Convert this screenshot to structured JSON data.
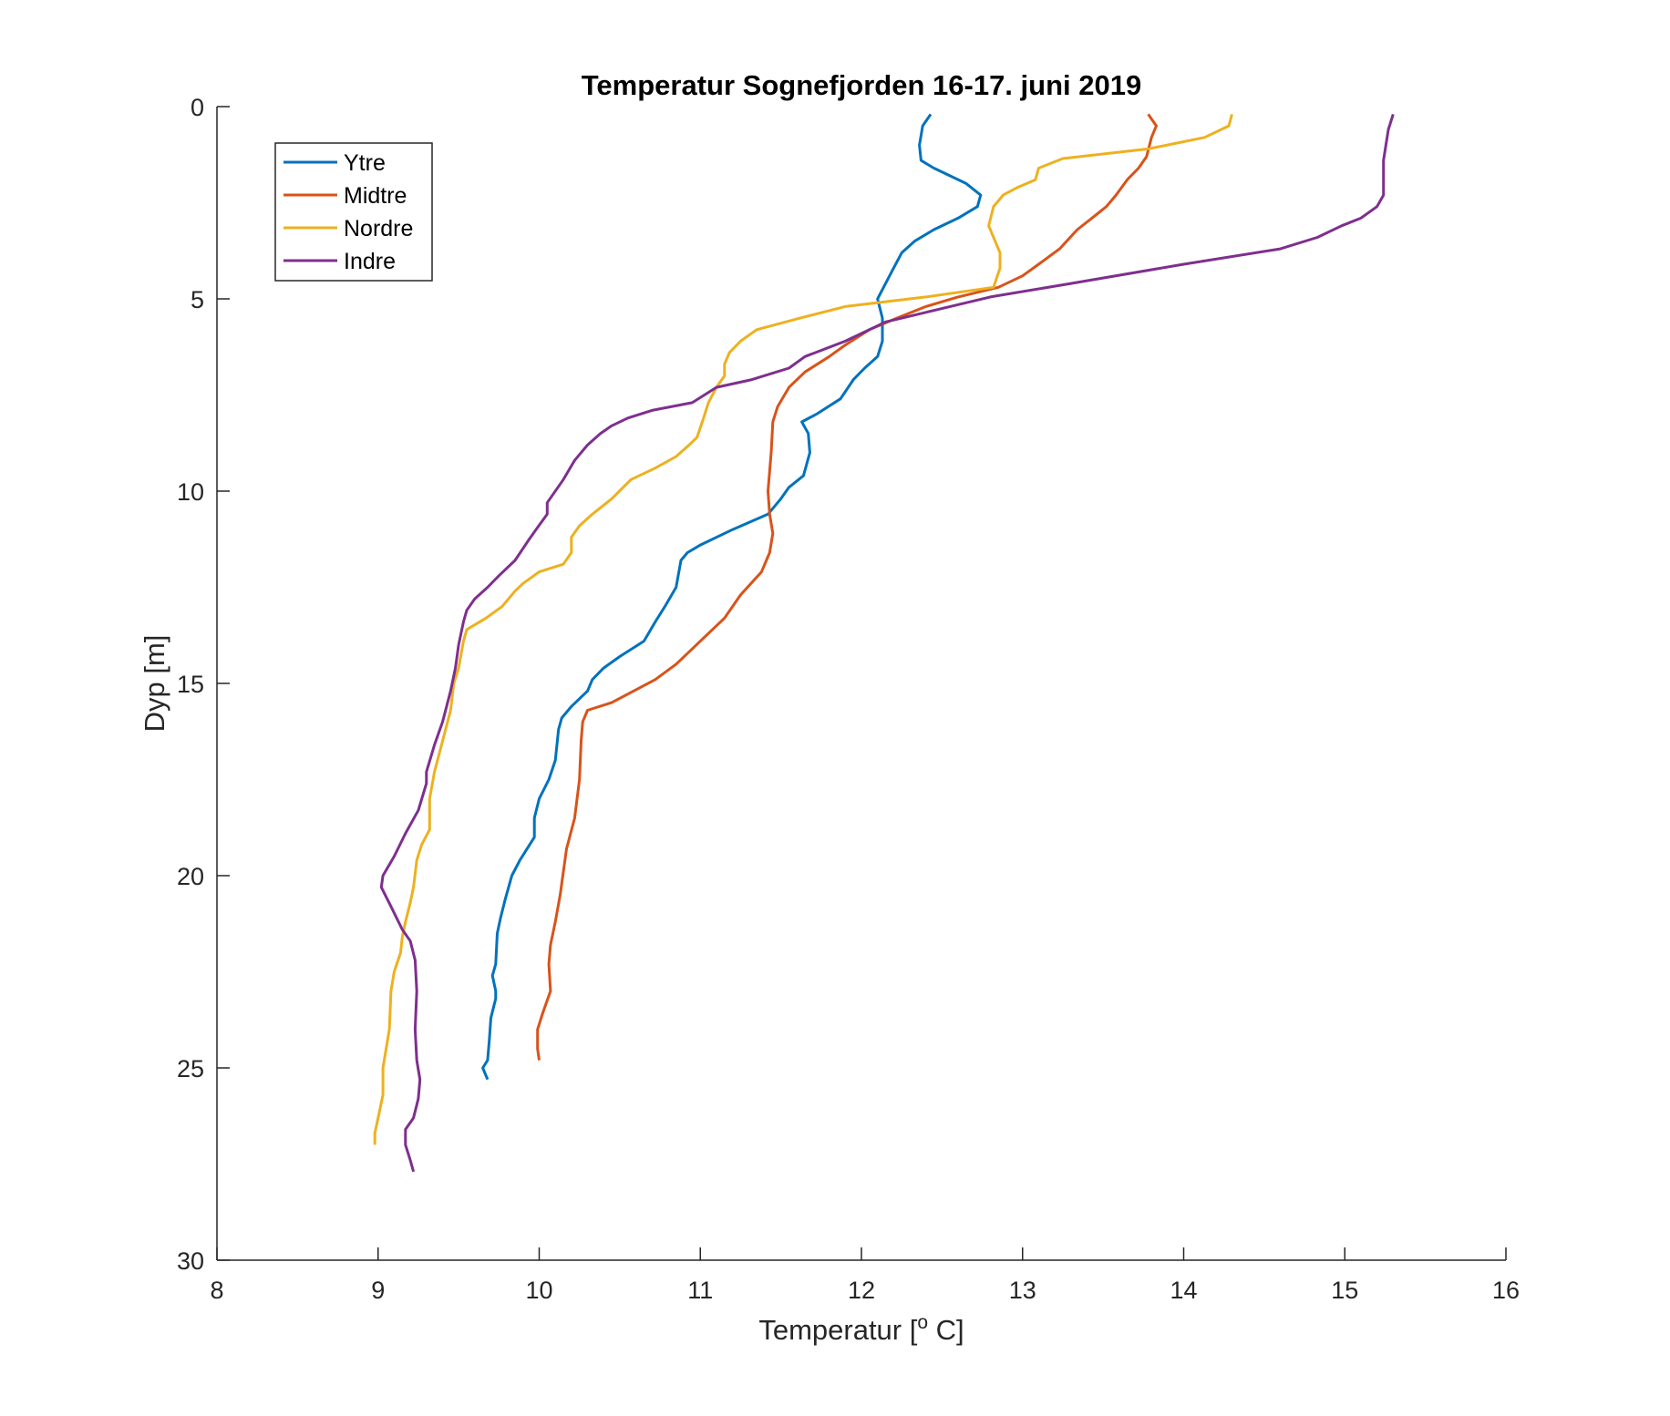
{
  "chart_data": {
    "type": "line",
    "title": "Temperatur Sognefjorden 16-17. juni 2019",
    "xlabel": {
      "before": "Temperatur [",
      "sup": "o",
      "after": " C]"
    },
    "ylabel": "Dyp [m]",
    "xlim": [
      8,
      16
    ],
    "ylim": [
      0,
      30
    ],
    "y_reversed": true,
    "xticks": [
      8,
      9,
      10,
      11,
      12,
      13,
      14,
      15,
      16
    ],
    "yticks": [
      0,
      5,
      10,
      15,
      20,
      25,
      30
    ],
    "grid": false,
    "legend_position": "top-left",
    "series": [
      {
        "name": "Ytre",
        "color": "#0072BD",
        "points": [
          [
            12.43,
            0.2
          ],
          [
            12.38,
            0.5
          ],
          [
            12.36,
            1.0
          ],
          [
            12.37,
            1.4
          ],
          [
            12.45,
            1.6
          ],
          [
            12.65,
            2.0
          ],
          [
            12.74,
            2.3
          ],
          [
            12.72,
            2.6
          ],
          [
            12.6,
            2.9
          ],
          [
            12.45,
            3.2
          ],
          [
            12.33,
            3.5
          ],
          [
            12.25,
            3.8
          ],
          [
            12.2,
            4.2
          ],
          [
            12.15,
            4.6
          ],
          [
            12.1,
            5.0
          ],
          [
            12.13,
            5.5
          ],
          [
            12.13,
            6.1
          ],
          [
            12.1,
            6.5
          ],
          [
            12.02,
            6.8
          ],
          [
            11.95,
            7.1
          ],
          [
            11.87,
            7.6
          ],
          [
            11.72,
            8.0
          ],
          [
            11.63,
            8.2
          ],
          [
            11.67,
            8.5
          ],
          [
            11.68,
            9.0
          ],
          [
            11.64,
            9.6
          ],
          [
            11.55,
            9.9
          ],
          [
            11.5,
            10.2
          ],
          [
            11.42,
            10.6
          ],
          [
            11.2,
            11.0
          ],
          [
            11.0,
            11.4
          ],
          [
            10.92,
            11.6
          ],
          [
            10.88,
            11.8
          ],
          [
            10.85,
            12.5
          ],
          [
            10.78,
            13.0
          ],
          [
            10.72,
            13.4
          ],
          [
            10.65,
            13.9
          ],
          [
            10.5,
            14.3
          ],
          [
            10.4,
            14.6
          ],
          [
            10.33,
            14.9
          ],
          [
            10.3,
            15.2
          ],
          [
            10.2,
            15.6
          ],
          [
            10.14,
            15.9
          ],
          [
            10.12,
            16.2
          ],
          [
            10.1,
            17.0
          ],
          [
            10.06,
            17.5
          ],
          [
            10.0,
            18.0
          ],
          [
            9.97,
            18.5
          ],
          [
            9.97,
            19.0
          ],
          [
            9.88,
            19.6
          ],
          [
            9.83,
            20.0
          ],
          [
            9.79,
            20.6
          ],
          [
            9.76,
            21.1
          ],
          [
            9.74,
            21.5
          ],
          [
            9.73,
            22.3
          ],
          [
            9.71,
            22.6
          ],
          [
            9.73,
            23.0
          ],
          [
            9.73,
            23.2
          ],
          [
            9.7,
            23.7
          ],
          [
            9.69,
            24.3
          ],
          [
            9.68,
            24.8
          ],
          [
            9.65,
            25.0
          ],
          [
            9.68,
            25.3
          ]
        ]
      },
      {
        "name": "Midtre",
        "color": "#D95319",
        "points": [
          [
            13.78,
            0.2
          ],
          [
            13.83,
            0.5
          ],
          [
            13.8,
            0.8
          ],
          [
            13.77,
            1.3
          ],
          [
            13.72,
            1.6
          ],
          [
            13.65,
            1.9
          ],
          [
            13.58,
            2.3
          ],
          [
            13.52,
            2.6
          ],
          [
            13.43,
            2.9
          ],
          [
            13.34,
            3.2
          ],
          [
            13.23,
            3.7
          ],
          [
            13.1,
            4.1
          ],
          [
            13.0,
            4.4
          ],
          [
            12.85,
            4.7
          ],
          [
            12.6,
            4.95
          ],
          [
            12.4,
            5.2
          ],
          [
            12.22,
            5.5
          ],
          [
            12.05,
            5.8
          ],
          [
            11.9,
            6.2
          ],
          [
            11.8,
            6.5
          ],
          [
            11.65,
            6.9
          ],
          [
            11.55,
            7.3
          ],
          [
            11.48,
            7.8
          ],
          [
            11.45,
            8.2
          ],
          [
            11.44,
            9.0
          ],
          [
            11.42,
            10.0
          ],
          [
            11.43,
            10.6
          ],
          [
            11.45,
            11.1
          ],
          [
            11.43,
            11.6
          ],
          [
            11.38,
            12.1
          ],
          [
            11.25,
            12.7
          ],
          [
            11.15,
            13.3
          ],
          [
            11.0,
            13.9
          ],
          [
            10.85,
            14.5
          ],
          [
            10.72,
            14.9
          ],
          [
            10.45,
            15.5
          ],
          [
            10.3,
            15.7
          ],
          [
            10.27,
            16.0
          ],
          [
            10.26,
            16.5
          ],
          [
            10.25,
            17.5
          ],
          [
            10.22,
            18.5
          ],
          [
            10.17,
            19.3
          ],
          [
            10.15,
            19.9
          ],
          [
            10.13,
            20.5
          ],
          [
            10.1,
            21.2
          ],
          [
            10.07,
            21.8
          ],
          [
            10.06,
            22.3
          ],
          [
            10.07,
            23.0
          ],
          [
            10.02,
            23.6
          ],
          [
            9.99,
            24.0
          ],
          [
            9.99,
            24.5
          ],
          [
            10.0,
            24.8
          ]
        ]
      },
      {
        "name": "Nordre",
        "color": "#EDB120",
        "points": [
          [
            14.3,
            0.2
          ],
          [
            14.28,
            0.5
          ],
          [
            14.13,
            0.8
          ],
          [
            13.78,
            1.1
          ],
          [
            13.25,
            1.35
          ],
          [
            13.1,
            1.6
          ],
          [
            13.08,
            1.9
          ],
          [
            12.97,
            2.1
          ],
          [
            12.88,
            2.3
          ],
          [
            12.82,
            2.6
          ],
          [
            12.79,
            3.1
          ],
          [
            12.8,
            3.2
          ],
          [
            12.83,
            3.5
          ],
          [
            12.86,
            3.8
          ],
          [
            12.86,
            4.2
          ],
          [
            12.82,
            4.7
          ],
          [
            12.4,
            4.95
          ],
          [
            11.9,
            5.2
          ],
          [
            11.62,
            5.5
          ],
          [
            11.35,
            5.8
          ],
          [
            11.25,
            6.1
          ],
          [
            11.18,
            6.4
          ],
          [
            11.15,
            6.7
          ],
          [
            11.15,
            7.0
          ],
          [
            11.1,
            7.3
          ],
          [
            11.05,
            7.7
          ],
          [
            11.02,
            8.1
          ],
          [
            10.98,
            8.6
          ],
          [
            10.93,
            8.8
          ],
          [
            10.85,
            9.1
          ],
          [
            10.72,
            9.4
          ],
          [
            10.57,
            9.7
          ],
          [
            10.45,
            10.2
          ],
          [
            10.33,
            10.6
          ],
          [
            10.25,
            10.9
          ],
          [
            10.2,
            11.2
          ],
          [
            10.2,
            11.6
          ],
          [
            10.15,
            11.9
          ],
          [
            10.0,
            12.1
          ],
          [
            9.9,
            12.4
          ],
          [
            9.85,
            12.6
          ],
          [
            9.77,
            13.0
          ],
          [
            9.67,
            13.3
          ],
          [
            9.55,
            13.6
          ],
          [
            9.53,
            13.9
          ],
          [
            9.5,
            14.6
          ],
          [
            9.47,
            15.0
          ],
          [
            9.45,
            15.7
          ],
          [
            9.4,
            16.5
          ],
          [
            9.35,
            17.3
          ],
          [
            9.32,
            18.0
          ],
          [
            9.32,
            18.8
          ],
          [
            9.27,
            19.2
          ],
          [
            9.24,
            19.6
          ],
          [
            9.22,
            20.3
          ],
          [
            9.2,
            20.7
          ],
          [
            9.17,
            21.2
          ],
          [
            9.15,
            21.6
          ],
          [
            9.14,
            22.0
          ],
          [
            9.1,
            22.5
          ],
          [
            9.08,
            23.0
          ],
          [
            9.07,
            24.0
          ],
          [
            9.05,
            24.5
          ],
          [
            9.03,
            25.0
          ],
          [
            9.03,
            25.7
          ],
          [
            9.0,
            26.3
          ],
          [
            8.98,
            26.7
          ],
          [
            8.98,
            27.0
          ]
        ]
      },
      {
        "name": "Indre",
        "color": "#7E2F8E",
        "points": [
          [
            15.3,
            0.2
          ],
          [
            15.27,
            0.6
          ],
          [
            15.24,
            1.4
          ],
          [
            15.24,
            2.3
          ],
          [
            15.2,
            2.6
          ],
          [
            15.1,
            2.9
          ],
          [
            14.98,
            3.1
          ],
          [
            14.83,
            3.4
          ],
          [
            14.6,
            3.7
          ],
          [
            14.0,
            4.1
          ],
          [
            13.3,
            4.6
          ],
          [
            12.8,
            4.95
          ],
          [
            12.45,
            5.3
          ],
          [
            12.15,
            5.6
          ],
          [
            11.9,
            6.1
          ],
          [
            11.65,
            6.5
          ],
          [
            11.55,
            6.8
          ],
          [
            11.32,
            7.1
          ],
          [
            11.1,
            7.3
          ],
          [
            10.95,
            7.7
          ],
          [
            10.7,
            7.9
          ],
          [
            10.55,
            8.1
          ],
          [
            10.45,
            8.3
          ],
          [
            10.38,
            8.5
          ],
          [
            10.3,
            8.8
          ],
          [
            10.22,
            9.2
          ],
          [
            10.15,
            9.7
          ],
          [
            10.05,
            10.3
          ],
          [
            10.05,
            10.6
          ],
          [
            9.98,
            11.0
          ],
          [
            9.93,
            11.3
          ],
          [
            9.85,
            11.8
          ],
          [
            9.75,
            12.2
          ],
          [
            9.68,
            12.5
          ],
          [
            9.6,
            12.8
          ],
          [
            9.55,
            13.1
          ],
          [
            9.53,
            13.4
          ],
          [
            9.5,
            14.0
          ],
          [
            9.48,
            14.6
          ],
          [
            9.45,
            15.2
          ],
          [
            9.4,
            16.0
          ],
          [
            9.35,
            16.6
          ],
          [
            9.3,
            17.3
          ],
          [
            9.3,
            17.6
          ],
          [
            9.25,
            18.3
          ],
          [
            9.17,
            18.9
          ],
          [
            9.1,
            19.5
          ],
          [
            9.03,
            20.0
          ],
          [
            9.02,
            20.3
          ],
          [
            9.08,
            20.8
          ],
          [
            9.15,
            21.4
          ],
          [
            9.2,
            21.7
          ],
          [
            9.23,
            22.2
          ],
          [
            9.24,
            23.0
          ],
          [
            9.23,
            24.0
          ],
          [
            9.24,
            24.8
          ],
          [
            9.26,
            25.3
          ],
          [
            9.25,
            25.8
          ],
          [
            9.22,
            26.3
          ],
          [
            9.17,
            26.6
          ],
          [
            9.17,
            27.0
          ],
          [
            9.2,
            27.4
          ],
          [
            9.22,
            27.7
          ]
        ]
      }
    ]
  }
}
